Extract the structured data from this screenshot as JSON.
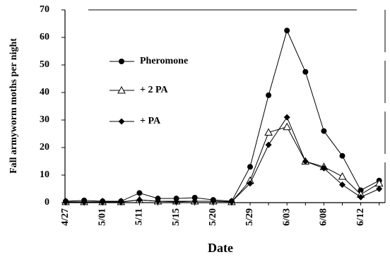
{
  "chart_data": {
    "type": "line",
    "y_label": "Fall armyworm moths per night",
    "x_label": "Date",
    "categories": [
      "4/27",
      null,
      "5/01",
      null,
      "5/11",
      null,
      "5/15",
      null,
      "5/20",
      null,
      "5/29",
      null,
      "6/03",
      null,
      "6/08",
      null,
      "6/12",
      null
    ],
    "series": [
      {
        "name": "Pheromone",
        "color": "#000000",
        "marker": "circle",
        "values": [
          0.5,
          0.8,
          0.5,
          0.5,
          3.5,
          1.5,
          1.5,
          1.8,
          1,
          0.5,
          13,
          39,
          62.5,
          47.5,
          26,
          17,
          4.5,
          8
        ]
      },
      {
        "name": "+ 2 PA",
        "color": "#000000",
        "marker": "triangle",
        "values": [
          0.3,
          0.3,
          0.3,
          0.3,
          1,
          0.5,
          0.5,
          0.5,
          0.5,
          0.3,
          8,
          25.5,
          27.5,
          15,
          13,
          9.5,
          3,
          7
        ]
      },
      {
        "name": "+ PA",
        "color": "#000000",
        "marker": "diamond",
        "values": [
          0.2,
          0.2,
          0.2,
          0.2,
          1,
          0.5,
          0.3,
          0.5,
          0.5,
          0.3,
          7,
          21,
          31,
          15,
          12.5,
          6.5,
          2,
          5
        ]
      }
    ],
    "ylim": [
      0,
      70
    ],
    "yticks": [
      0,
      10,
      20,
      30,
      40,
      50,
      60,
      70
    ],
    "legend": "upper left",
    "grid": false
  }
}
